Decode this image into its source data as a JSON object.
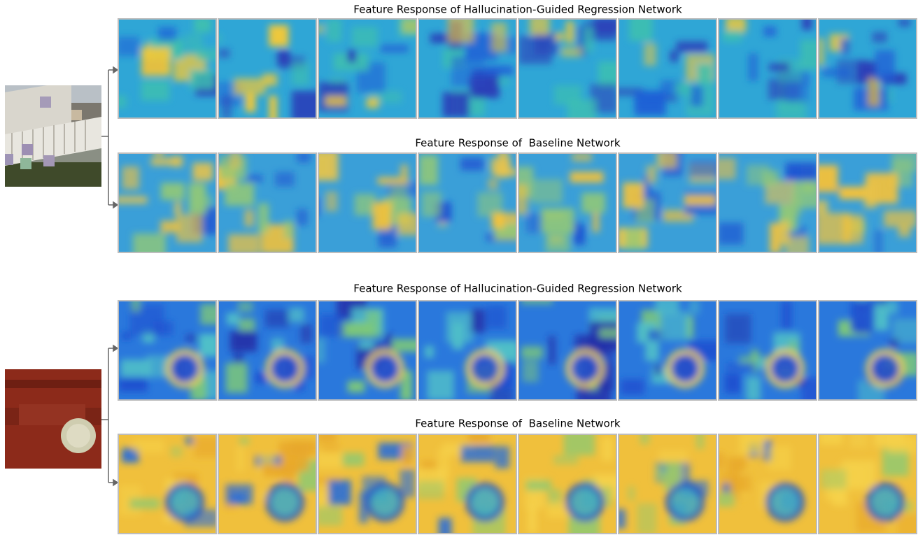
{
  "groups": [
    {
      "rows": [
        {
          "title": "Feature Response of Hallucination-Guided Regression Network"
        },
        {
          "title": "Feature Response of  Baseline Network"
        }
      ]
    },
    {
      "rows": [
        {
          "title": "Feature Response of Hallucination-Guided Regression Network"
        },
        {
          "title": "Feature Response of  Baseline Network"
        }
      ]
    }
  ]
}
